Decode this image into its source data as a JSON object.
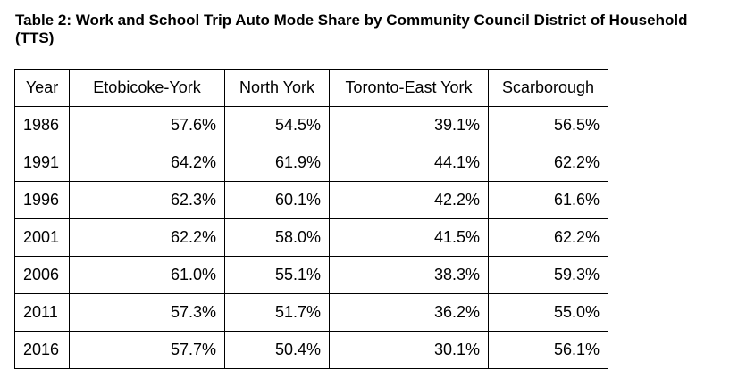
{
  "title": "Table 2: Work and School Trip Auto Mode Share by Community  Council District of Household (TTS)",
  "table": {
    "columns": [
      "Year",
      "Etobicoke-York",
      "North York",
      "Toronto-East York",
      "Scarborough"
    ],
    "rows": [
      [
        "1986",
        "57.6%",
        "54.5%",
        "39.1%",
        "56.5%"
      ],
      [
        "1991",
        "64.2%",
        "61.9%",
        "44.1%",
        "62.2%"
      ],
      [
        "1996",
        "62.3%",
        "60.1%",
        "42.2%",
        "61.6%"
      ],
      [
        "2001",
        "62.2%",
        "58.0%",
        "41.5%",
        "62.2%"
      ],
      [
        "2006",
        "61.0%",
        "55.1%",
        "38.3%",
        "59.3%"
      ],
      [
        "2011",
        "57.3%",
        "51.7%",
        "36.2%",
        "55.0%"
      ],
      [
        "2016",
        "57.7%",
        "50.4%",
        "30.1%",
        "56.1%"
      ]
    ]
  }
}
